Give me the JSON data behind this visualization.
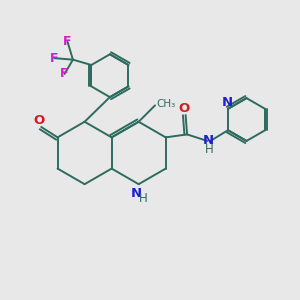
{
  "background_color": "#e8e8e8",
  "bond_color": "#2d6b5e",
  "N_color": "#2020cc",
  "O_color": "#cc2020",
  "F_color": "#cc20cc",
  "figsize": [
    3.0,
    3.0
  ],
  "dpi": 100,
  "lw": 1.4,
  "xlim": [
    0,
    10
  ],
  "ylim": [
    0,
    10
  ]
}
